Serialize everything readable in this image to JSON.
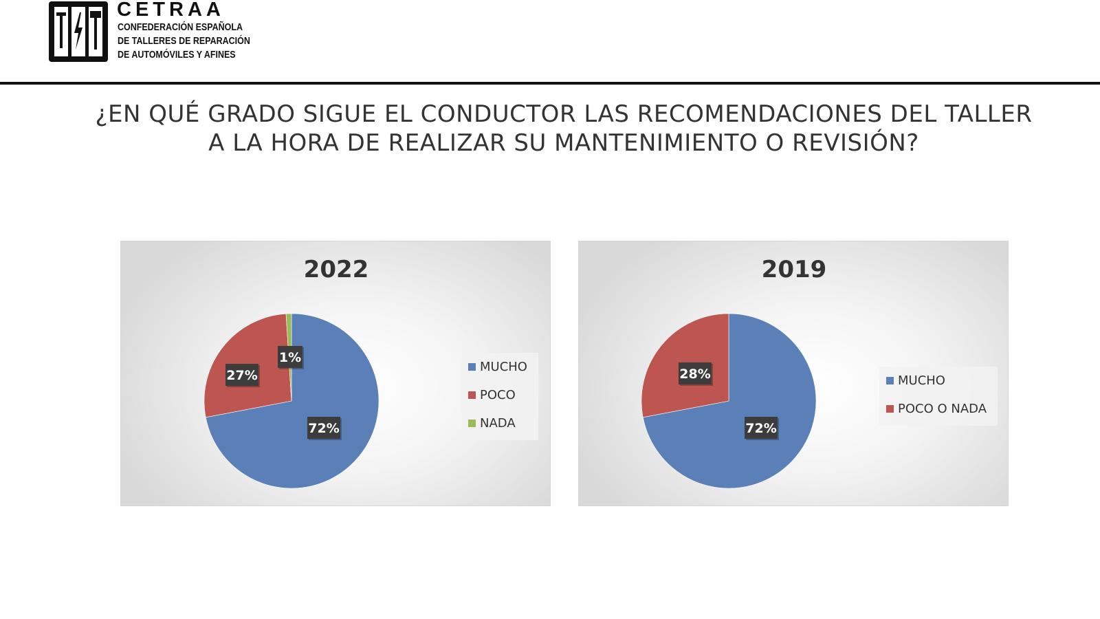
{
  "header": {
    "brand": "CETRAA",
    "lines": [
      "CONFEDERACIÓN ESPAÑOLA",
      "DE TALLERES DE REPARACIÓN",
      "DE AUTOMÓVILES Y AFINES"
    ]
  },
  "page": {
    "title_line1": "¿EN QUÉ GRADO SIGUE EL CONDUCTOR LAS RECOMENDACIONES DEL TALLER",
    "title_line2": "A LA HORA DE REALIZAR SU MANTENIMIENTO O REVISIÓN?"
  },
  "chart_data": [
    {
      "type": "pie",
      "title": "2022",
      "categories": [
        "MUCHO",
        "POCO",
        "NADA"
      ],
      "values": [
        72,
        27,
        1
      ],
      "labels": [
        "72%",
        "27%",
        "1%"
      ],
      "colors": [
        "#5b80b8",
        "#bd5551",
        "#9bbb59"
      ],
      "legend": "right"
    },
    {
      "type": "pie",
      "title": "2019",
      "categories": [
        "MUCHO",
        "POCO O NADA"
      ],
      "values": [
        72,
        28
      ],
      "labels": [
        "72%",
        "28%"
      ],
      "colors": [
        "#5b80b8",
        "#bd5551"
      ],
      "legend": "right"
    }
  ]
}
